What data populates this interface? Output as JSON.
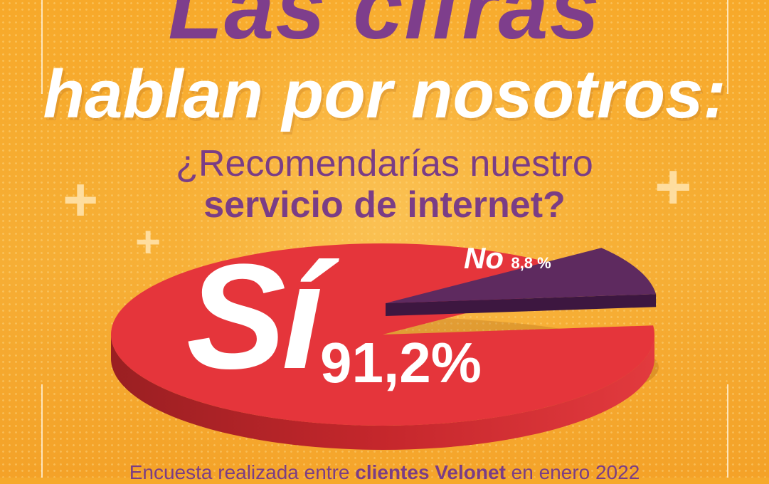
{
  "title": {
    "line1": "Las cifras",
    "line2": "hablan por nosotros:"
  },
  "question": {
    "line1": "¿Recomendarías nuestro",
    "line2": "servicio de internet?"
  },
  "chart_data": {
    "type": "pie",
    "categories": [
      "Sí",
      "No"
    ],
    "values": [
      91.2,
      8.8
    ],
    "labels": [
      "91,2%",
      "8,8 %"
    ],
    "colors": {
      "Sí": "#E5353B",
      "No": "#5E2A5F"
    }
  },
  "footer": {
    "prefix": "Encuesta realizada entre ",
    "highlight": "clientes Velonet",
    "suffix": " en enero 2022"
  },
  "colors": {
    "background": "#F6A92C",
    "purple": "#7A3D86",
    "white": "#FFFFFF"
  }
}
